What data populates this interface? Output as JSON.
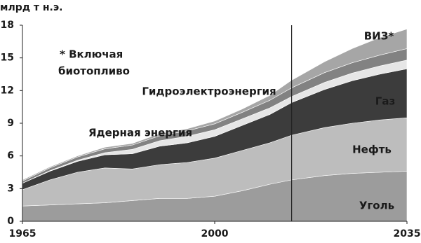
{
  "chart_data": {
    "type": "stacked_area",
    "y_label": "млрд т н.э.",
    "annotation": [
      "* Включая",
      "биотопливо"
    ],
    "x": [
      1965,
      1970,
      1975,
      1980,
      1985,
      1990,
      1995,
      2000,
      2005,
      2010,
      2014,
      2020,
      2025,
      2030,
      2035
    ],
    "series": [
      {
        "name": "Уголь",
        "color": "#9c9c9c",
        "values": [
          1.4,
          1.5,
          1.6,
          1.7,
          1.9,
          2.1,
          2.1,
          2.3,
          2.8,
          3.4,
          3.8,
          4.2,
          4.4,
          4.5,
          4.6
        ]
      },
      {
        "name": "Нефть",
        "color": "#bdbdbd",
        "values": [
          1.5,
          2.3,
          2.9,
          3.2,
          2.9,
          3.1,
          3.3,
          3.5,
          3.7,
          3.8,
          4.1,
          4.4,
          4.6,
          4.8,
          4.9
        ]
      },
      {
        "name": "Газ",
        "color": "#3c3c3c",
        "values": [
          0.6,
          0.8,
          1.0,
          1.2,
          1.4,
          1.7,
          1.8,
          2.0,
          2.3,
          2.6,
          3.0,
          3.5,
          3.9,
          4.2,
          4.5
        ]
      },
      {
        "name": "Ядерная энергия",
        "color": "#e6e6e6",
        "values": [
          0,
          0.05,
          0.1,
          0.2,
          0.4,
          0.5,
          0.6,
          0.6,
          0.6,
          0.6,
          0.55,
          0.65,
          0.7,
          0.75,
          0.8
        ]
      },
      {
        "name": "Гидроэлектроэнергия",
        "color": "#828282",
        "values": [
          0.2,
          0.25,
          0.3,
          0.35,
          0.4,
          0.45,
          0.5,
          0.55,
          0.6,
          0.7,
          0.8,
          0.9,
          0.95,
          1.0,
          1.05
        ]
      },
      {
        "name": "ВИЗ*",
        "color": "#a6a6a6",
        "values": [
          0.1,
          0.1,
          0.1,
          0.15,
          0.15,
          0.2,
          0.2,
          0.25,
          0.3,
          0.45,
          0.7,
          1.0,
          1.3,
          1.6,
          1.8
        ]
      }
    ],
    "projection_start": 2014,
    "xlim": [
      1965,
      2035
    ],
    "xticks": [
      1965,
      2000,
      2035
    ],
    "ylim": [
      0,
      18
    ],
    "yticks": [
      0,
      3,
      6,
      9,
      12,
      15,
      18
    ]
  }
}
